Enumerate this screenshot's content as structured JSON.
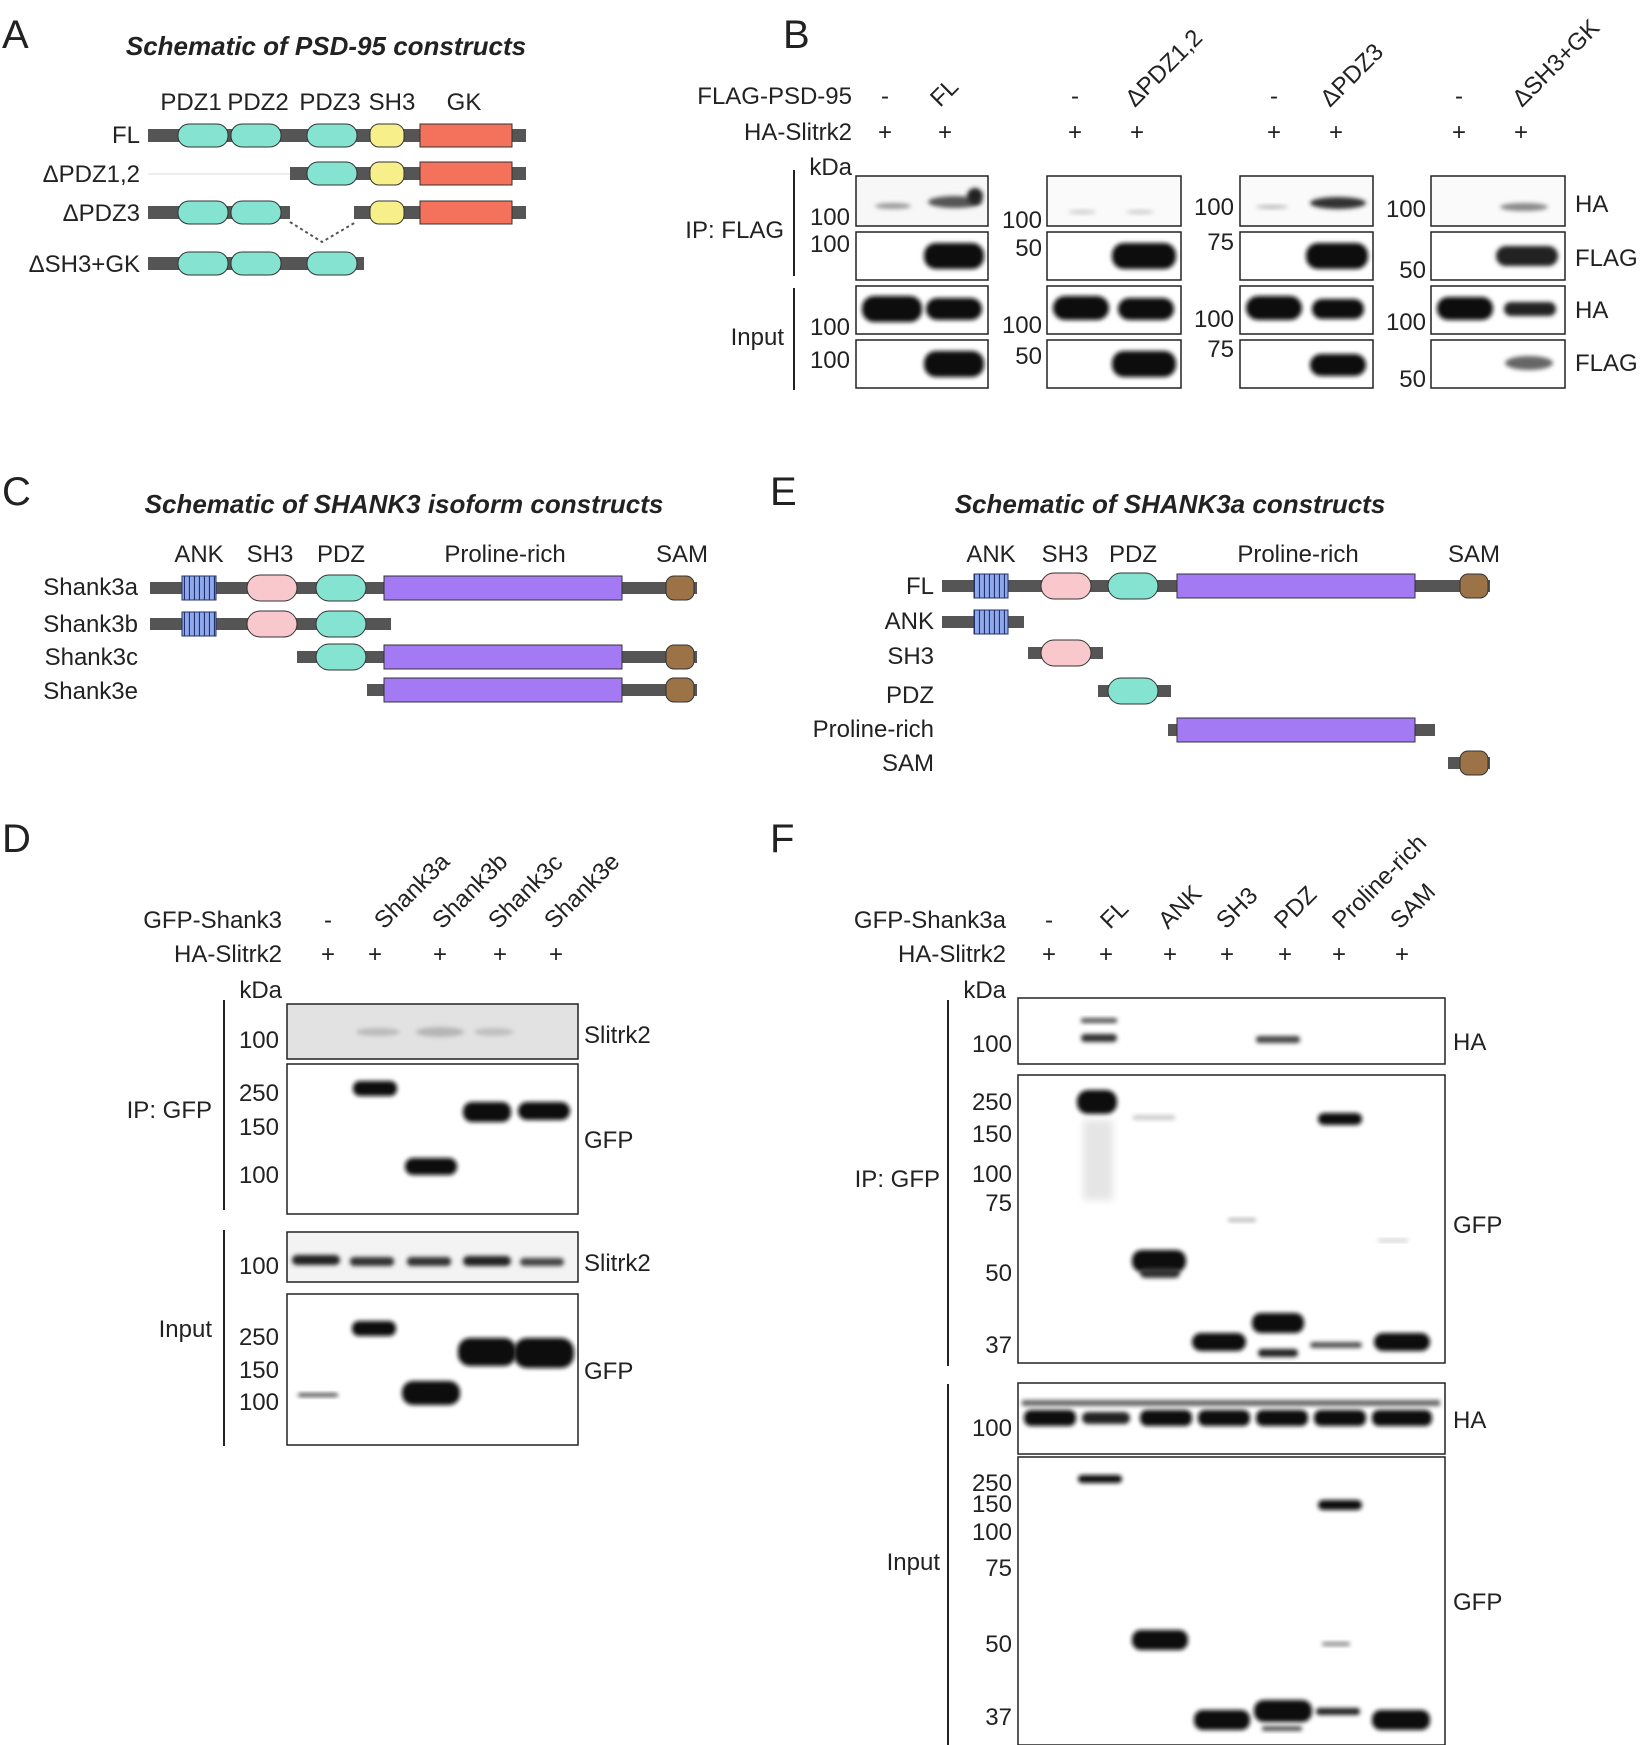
{
  "panels": {
    "A": "A",
    "B": "B",
    "C": "C",
    "D": "D",
    "E": "E",
    "F": "F"
  },
  "colors": {
    "pdz": "#85e3d1",
    "sh3_yellow": "#f6ef8a",
    "gk": "#f4715b",
    "ank": "#8ea8ec",
    "sh3_pink": "#f8c8cc",
    "proline": "#a47af4",
    "sam": "#9b7347",
    "backbone": "#555555"
  },
  "A": {
    "title": "Schematic of PSD-95 constructs",
    "domains": [
      "PDZ1",
      "PDZ2",
      "PDZ3",
      "SH3",
      "GK"
    ],
    "constructs": [
      "FL",
      "ΔPDZ1,2",
      "ΔPDZ3",
      "ΔSH3+GK"
    ]
  },
  "B": {
    "flag_label": "FLAG-PSD-95",
    "ha_label": "HA-Slitrk2",
    "minus": "-",
    "plus": "+",
    "groups": [
      "FL",
      "ΔPDZ1,2",
      "ΔPDZ3",
      "ΔSH3+GK"
    ],
    "kda": "kDa",
    "ip": "IP: FLAG",
    "input": "Input",
    "blots": [
      "HA",
      "FLAG",
      "HA",
      "FLAG"
    ],
    "markers": [
      [
        "100",
        "100",
        "100",
        "100"
      ],
      [
        "100",
        "50",
        "100",
        "50"
      ],
      [
        "100",
        "75",
        "100",
        "75"
      ],
      [
        "100",
        "50",
        "100",
        "50"
      ]
    ]
  },
  "C": {
    "title": "Schematic of SHANK3 isoform constructs",
    "domains": [
      "ANK",
      "SH3",
      "PDZ",
      "Proline-rich",
      "SAM"
    ],
    "isoforms": [
      "Shank3a",
      "Shank3b",
      "Shank3c",
      "Shank3e"
    ]
  },
  "D": {
    "gfp_label": "GFP-Shank3",
    "ha_label": "HA-Slitrk2",
    "lanes": [
      "-",
      "Shank3a",
      "Shank3b",
      "Shank3c",
      "Shank3e"
    ],
    "plus": "+",
    "kda": "kDa",
    "ip": "IP: GFP",
    "input": "Input",
    "blots": [
      "Slitrk2",
      "GFP",
      "Slitrk2",
      "GFP"
    ],
    "markers_ip_slitrk": [
      "100"
    ],
    "markers_ip_gfp": [
      "250",
      "150",
      "100"
    ],
    "markers_in_slitrk": [
      "100"
    ],
    "markers_in_gfp": [
      "250",
      "150",
      "100"
    ]
  },
  "E": {
    "title": "Schematic of SHANK3a constructs",
    "domains": [
      "ANK",
      "SH3",
      "PDZ",
      "Proline-rich",
      "SAM"
    ],
    "constructs": [
      "FL",
      "ANK",
      "SH3",
      "PDZ",
      "Proline-rich",
      "SAM"
    ]
  },
  "F": {
    "gfp_label": "GFP-Shank3a",
    "ha_label": "HA-Slitrk2",
    "lanes": [
      "-",
      "FL",
      "ANK",
      "SH3",
      "PDZ",
      "Proline-rich",
      "SAM"
    ],
    "plus": "+",
    "kda": "kDa",
    "ip": "IP: GFP",
    "input": "Input",
    "blots": [
      "HA",
      "GFP",
      "HA",
      "GFP"
    ],
    "markers_ip_ha": [
      "100"
    ],
    "markers_ip_gfp": [
      "250",
      "150",
      "100",
      "75",
      "50",
      "37"
    ],
    "markers_in_ha": [
      "100"
    ],
    "markers_in_gfp": [
      "250",
      "150",
      "100",
      "75",
      "50",
      "37"
    ]
  }
}
